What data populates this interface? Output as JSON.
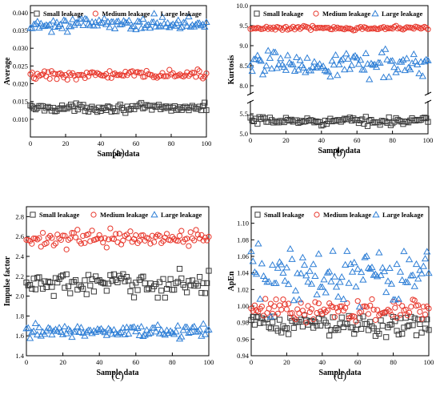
{
  "chart_data": [
    {
      "type": "scatter",
      "panel_label": "(a)",
      "xlabel": "Sample data",
      "ylabel": "Average",
      "xlim": [
        0,
        100
      ],
      "ylim": [
        0.005,
        0.042
      ],
      "xticks": [
        0,
        20,
        40,
        60,
        80,
        100
      ],
      "yticks": [
        0.01,
        0.015,
        0.02,
        0.025,
        0.03,
        0.035,
        0.04
      ],
      "ytick_labels": [
        "0.010",
        "0.015",
        "0.020",
        "0.025",
        "0.030",
        "0.035",
        "0.040"
      ],
      "legend_position": "top",
      "series": [
        {
          "name": "Small leakage",
          "marker": "square",
          "color": "#3a3a3a",
          "center": 0.0132,
          "spread": 0.0016
        },
        {
          "name": "Medium leakage",
          "marker": "circle",
          "color": "#e8372c",
          "center": 0.0225,
          "spread": 0.0018
        },
        {
          "name": "Large leakage",
          "marker": "triangle",
          "color": "#2f7fd6",
          "center": 0.0368,
          "spread": 0.0025
        }
      ]
    },
    {
      "type": "scatter",
      "panel_label": "(b)",
      "xlabel": "Sample data",
      "ylabel": "Kurtosis",
      "xlim": [
        0,
        100
      ],
      "ylim": [
        5.0,
        10.0
      ],
      "axis_break": {
        "between": [
          5.8,
          7.8
        ]
      },
      "xticks": [
        0,
        20,
        40,
        60,
        80,
        100
      ],
      "yticks": [
        5.0,
        5.5,
        8.0,
        8.5,
        9.0,
        9.5,
        10.0
      ],
      "ytick_labels": [
        "5.0",
        "5.5",
        "8.0",
        "8.5",
        "9.0",
        "9.5",
        "10.0"
      ],
      "legend_position": "top",
      "series": [
        {
          "name": "Small leakage",
          "marker": "square",
          "color": "#3a3a3a",
          "center": 5.32,
          "spread": 0.14
        },
        {
          "name": "Medium leakage",
          "marker": "circle",
          "color": "#e8372c",
          "center": 9.44,
          "spread": 0.07
        },
        {
          "name": "Large leakage",
          "marker": "triangle",
          "color": "#2f7fd6",
          "center": 8.55,
          "spread": 0.45
        }
      ]
    },
    {
      "type": "scatter",
      "panel_label": "(c)",
      "xlabel": "Sample data",
      "ylabel": "Impulse factor",
      "xlim": [
        0,
        100
      ],
      "ylim": [
        1.4,
        2.9
      ],
      "xticks": [
        0,
        20,
        40,
        60,
        80,
        100
      ],
      "yticks": [
        1.4,
        1.6,
        1.8,
        2.0,
        2.2,
        2.4,
        2.6,
        2.8
      ],
      "ytick_labels": [
        "1.4",
        "1.6",
        "1.8",
        "2.0",
        "2.2",
        "2.4",
        "2.6",
        "2.8"
      ],
      "legend_position": "top",
      "series": [
        {
          "name": "Small leakage",
          "marker": "square",
          "color": "#3a3a3a",
          "center": 2.12,
          "spread": 0.18
        },
        {
          "name": "Medium leakage",
          "marker": "circle",
          "color": "#e8372c",
          "center": 2.58,
          "spread": 0.12
        },
        {
          "name": "Large leakage",
          "marker": "triangle",
          "color": "#2f7fd6",
          "center": 1.65,
          "spread": 0.09
        }
      ]
    },
    {
      "type": "scatter",
      "panel_label": "(d)",
      "xlabel": "Sample data",
      "ylabel": "ApEn",
      "xlim": [
        0,
        100
      ],
      "ylim": [
        0.94,
        1.12
      ],
      "xticks": [
        0,
        20,
        40,
        60,
        80,
        100
      ],
      "yticks": [
        0.94,
        0.96,
        0.98,
        1.0,
        1.02,
        1.04,
        1.06,
        1.08,
        1.1
      ],
      "ytick_labels": [
        "0.94",
        "0.96",
        "0.98",
        "1.00",
        "1.02",
        "1.04",
        "1.06",
        "1.08",
        "1.10"
      ],
      "legend_position": "top",
      "series": [
        {
          "name": "Small leakage",
          "marker": "square",
          "color": "#3a3a3a",
          "center": 0.978,
          "spread": 0.02
        },
        {
          "name": "Medium leakage",
          "marker": "circle",
          "color": "#e8372c",
          "center": 0.995,
          "spread": 0.02
        },
        {
          "name": "Large leakage",
          "marker": "triangle",
          "color": "#2f7fd6",
          "center": 1.035,
          "spread": 0.05
        }
      ]
    }
  ]
}
